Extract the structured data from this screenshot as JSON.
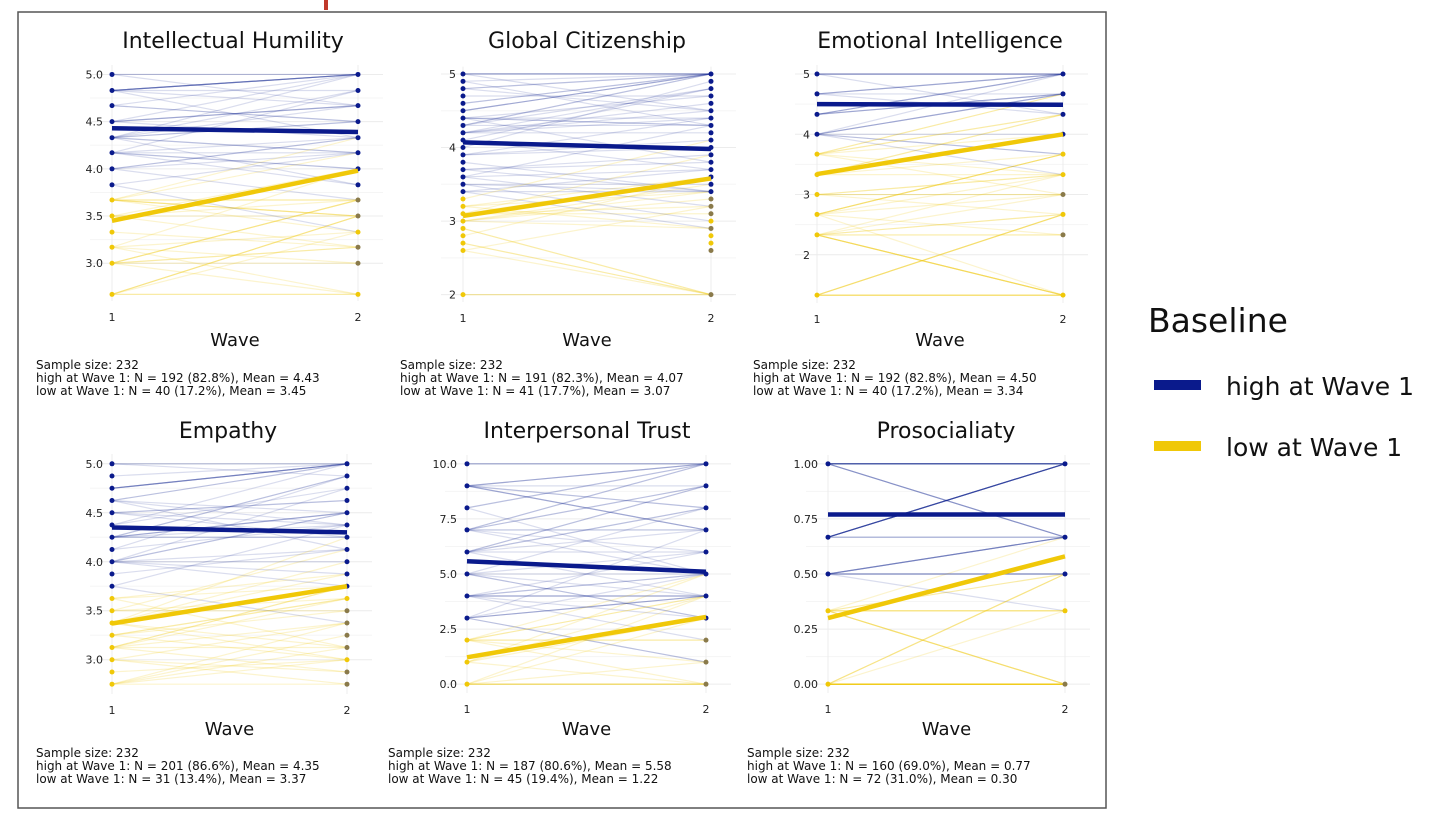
{
  "legend": {
    "title": "Baseline",
    "items": [
      {
        "label": "high at Wave 1",
        "color": "#0a1a8c"
      },
      {
        "label": "low at Wave 1",
        "color": "#f0c808"
      }
    ]
  },
  "chart_data": [
    {
      "type": "line",
      "title": "Intellectual Humility",
      "xlabel": "Wave",
      "x_ticks": [
        "1",
        "2"
      ],
      "y_ticks": [
        "3.0",
        "3.5",
        "4.0",
        "4.5",
        "5.0"
      ],
      "y_tick_values": [
        3,
        3.5,
        4,
        4.5,
        5
      ],
      "ylim": [
        2.6,
        5.1
      ],
      "cutoff": 3.8,
      "levels": [
        2.67,
        3,
        3.17,
        3.33,
        3.5,
        3.67,
        3.83,
        4,
        4.17,
        4.33,
        4.5,
        4.67,
        4.83,
        5
      ],
      "series": [
        {
          "name": "high at Wave 1",
          "values": [
            4.43,
            4.39
          ]
        },
        {
          "name": "low at Wave 1",
          "values": [
            3.45,
            3.98
          ]
        }
      ],
      "caption": [
        "Sample size: 232",
        "high at Wave 1: N = 192 (82.8%), Mean = 4.43",
        "low at Wave 1: N = 40 (17.2%), Mean = 3.45"
      ]
    },
    {
      "type": "line",
      "title": "Global Citizenship",
      "xlabel": "Wave",
      "x_ticks": [
        "1",
        "2"
      ],
      "y_ticks": [
        "2",
        "3",
        "4",
        "5"
      ],
      "y_tick_values": [
        2,
        3,
        4,
        5
      ],
      "ylim": [
        1.9,
        5.1
      ],
      "cutoff": 3.4,
      "levels": [
        2,
        2.6,
        2.7,
        2.8,
        2.9,
        3,
        3.1,
        3.2,
        3.3,
        3.4,
        3.5,
        3.6,
        3.7,
        3.8,
        3.9,
        4,
        4.1,
        4.2,
        4.3,
        4.4,
        4.5,
        4.6,
        4.7,
        4.8,
        4.9,
        5
      ],
      "series": [
        {
          "name": "high at Wave 1",
          "values": [
            4.07,
            3.98
          ]
        },
        {
          "name": "low at Wave 1",
          "values": [
            3.07,
            3.58
          ]
        }
      ],
      "caption": [
        "Sample size: 232",
        "high at Wave 1: N = 191 (82.3%), Mean = 4.07",
        "low at Wave 1: N = 41 (17.7%), Mean = 3.07"
      ]
    },
    {
      "type": "line",
      "title": "Emotional Intelligence",
      "xlabel": "Wave",
      "x_ticks": [
        "1",
        "2"
      ],
      "y_ticks": [
        "2",
        "3",
        "4",
        "5"
      ],
      "y_tick_values": [
        2,
        3,
        4,
        5
      ],
      "ylim": [
        1.2,
        5.15
      ],
      "cutoff": 3.9,
      "levels": [
        1.33,
        2.33,
        2.67,
        3,
        3.33,
        3.67,
        4,
        4.33,
        4.67,
        5
      ],
      "series": [
        {
          "name": "high at Wave 1",
          "values": [
            4.5,
            4.49
          ]
        },
        {
          "name": "low at Wave 1",
          "values": [
            3.34,
            4.0
          ]
        }
      ],
      "caption": [
        "Sample size: 232",
        "high at Wave 1: N = 192 (82.8%), Mean = 4.50",
        "low at Wave 1: N = 40 (17.2%), Mean = 3.34"
      ]
    },
    {
      "type": "line",
      "title": "Empathy",
      "xlabel": "Wave",
      "x_ticks": [
        "1",
        "2"
      ],
      "y_ticks": [
        "3.0",
        "3.5",
        "4.0",
        "4.5",
        "5.0"
      ],
      "y_tick_values": [
        3,
        3.5,
        4,
        4.5,
        5
      ],
      "ylim": [
        2.65,
        5.1
      ],
      "cutoff": 3.7,
      "levels": [
        2.75,
        2.875,
        3,
        3.125,
        3.25,
        3.375,
        3.5,
        3.625,
        3.75,
        3.875,
        4,
        4.125,
        4.25,
        4.375,
        4.5,
        4.625,
        4.75,
        4.875,
        5
      ],
      "series": [
        {
          "name": "high at Wave 1",
          "values": [
            4.35,
            4.3
          ]
        },
        {
          "name": "low at Wave 1",
          "values": [
            3.37,
            3.75
          ]
        }
      ],
      "caption": [
        "Sample size: 232",
        "high at Wave 1: N = 201 (86.6%), Mean = 4.35",
        "low at Wave 1: N = 31 (13.4%), Mean = 3.37"
      ]
    },
    {
      "type": "line",
      "title": "Interpersonal Trust",
      "xlabel": "Wave",
      "x_ticks": [
        "1",
        "2"
      ],
      "y_ticks": [
        "0.0",
        "2.5",
        "5.0",
        "7.5",
        "10.0"
      ],
      "y_tick_values": [
        0,
        2.5,
        5,
        7.5,
        10
      ],
      "ylim": [
        -0.4,
        10.4
      ],
      "cutoff": 2.5,
      "levels": [
        0,
        1,
        2,
        3,
        4,
        5,
        6,
        7,
        8,
        9,
        10
      ],
      "series": [
        {
          "name": "high at Wave 1",
          "values": [
            5.58,
            5.1
          ]
        },
        {
          "name": "low at Wave 1",
          "values": [
            1.22,
            3.05
          ]
        }
      ],
      "caption": [
        "Sample size: 232",
        "high at Wave 1: N = 187 (80.6%), Mean = 5.58",
        "low at Wave 1: N = 45 (19.4%), Mean = 1.22"
      ]
    },
    {
      "type": "line",
      "title": "Prosocialiaty",
      "xlabel": "Wave",
      "x_ticks": [
        "1",
        "2"
      ],
      "y_ticks": [
        "0.00",
        "0.25",
        "0.50",
        "0.75",
        "1.00"
      ],
      "y_tick_values": [
        0,
        0.25,
        0.5,
        0.75,
        1
      ],
      "ylim": [
        -0.04,
        1.04
      ],
      "cutoff": 0.4,
      "levels": [
        0,
        0.333,
        0.5,
        0.667,
        1
      ],
      "series": [
        {
          "name": "high at Wave 1",
          "values": [
            0.77,
            0.77
          ]
        },
        {
          "name": "low at Wave 1",
          "values": [
            0.3,
            0.58
          ]
        }
      ],
      "caption": [
        "Sample size: 232",
        "high at Wave 1: N = 160 (69.0%), Mean = 0.77",
        "low at Wave 1: N = 72 (31.0%), Mean = 0.30"
      ]
    }
  ]
}
